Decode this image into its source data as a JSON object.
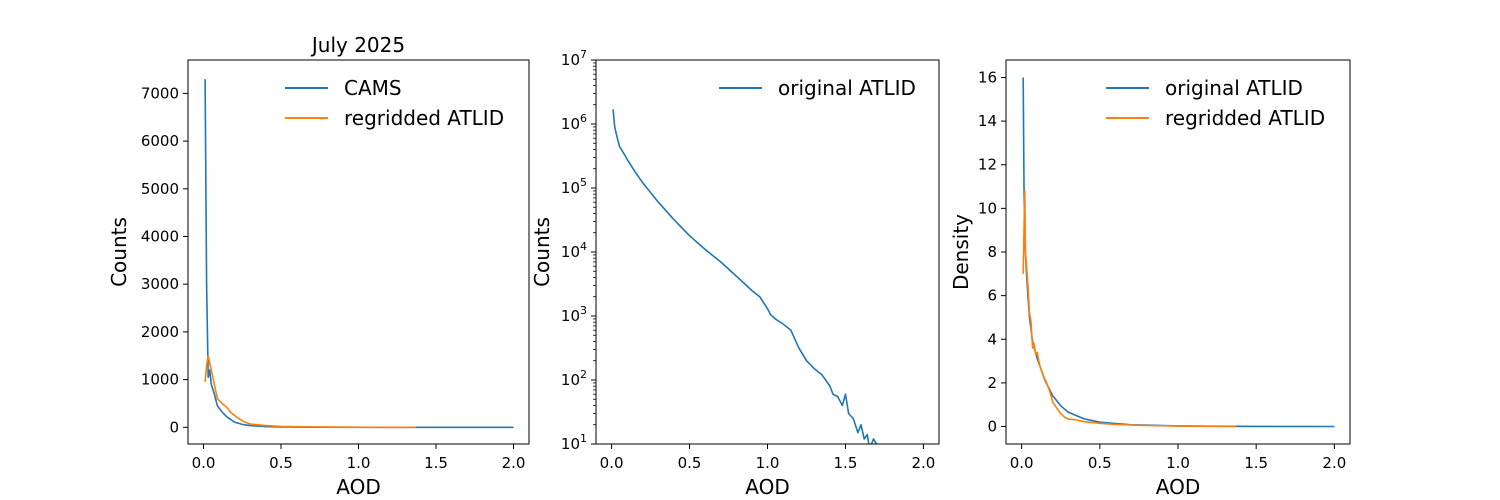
{
  "chart_data": [
    {
      "type": "line",
      "title": "July 2025",
      "xlabel": "AOD",
      "ylabel": "Counts",
      "xlim": [
        -0.1,
        2.1
      ],
      "ylim": [
        -350,
        7700
      ],
      "yscale": "linear",
      "grid": false,
      "legend": "upper-right",
      "xticks": [
        {
          "v": 0,
          "label": "0.0"
        },
        {
          "v": 0.5,
          "label": "0.5"
        },
        {
          "v": 1.0,
          "label": "1.0"
        },
        {
          "v": 1.5,
          "label": "1.5"
        },
        {
          "v": 2.0,
          "label": "2.0"
        }
      ],
      "yticks": [
        {
          "v": 0,
          "label": "0"
        },
        {
          "v": 1000,
          "label": "1000"
        },
        {
          "v": 2000,
          "label": "2000"
        },
        {
          "v": 3000,
          "label": "3000"
        },
        {
          "v": 4000,
          "label": "4000"
        },
        {
          "v": 5000,
          "label": "5000"
        },
        {
          "v": 6000,
          "label": "6000"
        },
        {
          "v": 7000,
          "label": "7000"
        }
      ],
      "series": [
        {
          "name": "CAMS",
          "color": "#1f77b4",
          "x": [
            0.01,
            0.02,
            0.03,
            0.04,
            0.05,
            0.07,
            0.09,
            0.12,
            0.15,
            0.2,
            0.25,
            0.3,
            0.4,
            0.5,
            0.7,
            1.0,
            1.5,
            2.0
          ],
          "y": [
            7300,
            3000,
            1050,
            1200,
            900,
            700,
            450,
            320,
            220,
            110,
            60,
            35,
            15,
            8,
            3,
            1,
            0,
            0
          ]
        },
        {
          "name": "regridded ATLID",
          "color": "#ff7f0e",
          "x": [
            0.01,
            0.02,
            0.03,
            0.04,
            0.05,
            0.07,
            0.09,
            0.12,
            0.15,
            0.18,
            0.22,
            0.26,
            0.3,
            0.4,
            0.5,
            0.7,
            1.0,
            1.2,
            1.37
          ],
          "y": [
            950,
            1300,
            1500,
            1350,
            1200,
            900,
            600,
            500,
            420,
            300,
            200,
            120,
            70,
            35,
            20,
            8,
            3,
            1,
            0
          ]
        }
      ]
    },
    {
      "type": "line",
      "title": "",
      "xlabel": "AOD",
      "ylabel": "Counts",
      "xlim": [
        -0.1,
        2.1
      ],
      "ylim": [
        10,
        10000000
      ],
      "yscale": "log",
      "grid": false,
      "legend": "upper-right",
      "xticks": [
        {
          "v": 0,
          "label": "0.0"
        },
        {
          "v": 0.5,
          "label": "0.5"
        },
        {
          "v": 1.0,
          "label": "1.0"
        },
        {
          "v": 1.5,
          "label": "1.5"
        },
        {
          "v": 2.0,
          "label": "2.0"
        }
      ],
      "yticks": [
        {
          "v": 10,
          "base": "10",
          "exp": "1"
        },
        {
          "v": 100,
          "base": "10",
          "exp": "2"
        },
        {
          "v": 1000,
          "base": "10",
          "exp": "3"
        },
        {
          "v": 10000,
          "base": "10",
          "exp": "4"
        },
        {
          "v": 100000,
          "base": "10",
          "exp": "5"
        },
        {
          "v": 1000000,
          "base": "10",
          "exp": "6"
        },
        {
          "v": 10000000,
          "base": "10",
          "exp": "7"
        }
      ],
      "series": [
        {
          "name": "original ATLID",
          "color": "#1f77b4",
          "x": [
            0.01,
            0.02,
            0.03,
            0.05,
            0.08,
            0.1,
            0.15,
            0.2,
            0.3,
            0.4,
            0.5,
            0.6,
            0.7,
            0.8,
            0.9,
            0.95,
            1.0,
            1.02,
            1.05,
            1.1,
            1.15,
            1.2,
            1.25,
            1.3,
            1.35,
            1.4,
            1.42,
            1.45,
            1.48,
            1.5,
            1.52,
            1.55,
            1.58,
            1.6,
            1.62,
            1.64,
            1.65,
            1.66,
            1.68,
            1.7
          ],
          "y": [
            1700000,
            900000,
            700000,
            450000,
            340000,
            280000,
            180000,
            120000,
            60000,
            32000,
            18000,
            11000,
            7000,
            4200,
            2500,
            2000,
            1300,
            1050,
            900,
            750,
            600,
            320,
            200,
            150,
            120,
            80,
            60,
            55,
            40,
            60,
            30,
            25,
            15,
            20,
            12,
            14,
            10,
            9,
            12,
            10
          ]
        }
      ]
    },
    {
      "type": "line",
      "title": "",
      "xlabel": "AOD",
      "ylabel": "Density",
      "xlim": [
        -0.1,
        2.1
      ],
      "ylim": [
        -0.8,
        16.8
      ],
      "yscale": "linear",
      "grid": false,
      "legend": "upper-right",
      "xticks": [
        {
          "v": 0,
          "label": "0.0"
        },
        {
          "v": 0.5,
          "label": "0.5"
        },
        {
          "v": 1.0,
          "label": "1.0"
        },
        {
          "v": 1.5,
          "label": "1.5"
        },
        {
          "v": 2.0,
          "label": "2.0"
        }
      ],
      "yticks": [
        {
          "v": 0,
          "label": "0"
        },
        {
          "v": 2,
          "label": "2"
        },
        {
          "v": 4,
          "label": "4"
        },
        {
          "v": 6,
          "label": "6"
        },
        {
          "v": 8,
          "label": "8"
        },
        {
          "v": 10,
          "label": "10"
        },
        {
          "v": 12,
          "label": "12"
        },
        {
          "v": 14,
          "label": "14"
        },
        {
          "v": 16,
          "label": "16"
        }
      ],
      "series": [
        {
          "name": "original ATLID",
          "color": "#1f77b4",
          "x": [
            0.01,
            0.015,
            0.02,
            0.03,
            0.04,
            0.05,
            0.07,
            0.1,
            0.15,
            0.2,
            0.25,
            0.3,
            0.4,
            0.5,
            0.7,
            1.0,
            1.5,
            2.0
          ],
          "y": [
            16,
            11,
            8.6,
            7.2,
            6,
            5,
            3.9,
            3.1,
            2.1,
            1.4,
            0.95,
            0.65,
            0.35,
            0.2,
            0.08,
            0.03,
            0.005,
            0
          ]
        },
        {
          "name": "regridded ATLID",
          "color": "#ff7f0e",
          "x": [
            0.01,
            0.015,
            0.02,
            0.025,
            0.03,
            0.04,
            0.05,
            0.06,
            0.07,
            0.08,
            0.09,
            0.1,
            0.11,
            0.12,
            0.14,
            0.16,
            0.18,
            0.2,
            0.22,
            0.25,
            0.28,
            0.3,
            0.35,
            0.4,
            0.5,
            0.6,
            0.7,
            0.8,
            1.0,
            1.2,
            1.37
          ],
          "y": [
            7,
            9,
            10.8,
            8,
            7.5,
            6.5,
            5.2,
            4.8,
            3.6,
            3.8,
            3.3,
            3.4,
            3.0,
            2.7,
            2.3,
            2.0,
            1.6,
            1.1,
            0.9,
            0.6,
            0.4,
            0.35,
            0.3,
            0.22,
            0.15,
            0.1,
            0.07,
            0.05,
            0.02,
            0.01,
            0
          ]
        }
      ]
    }
  ]
}
